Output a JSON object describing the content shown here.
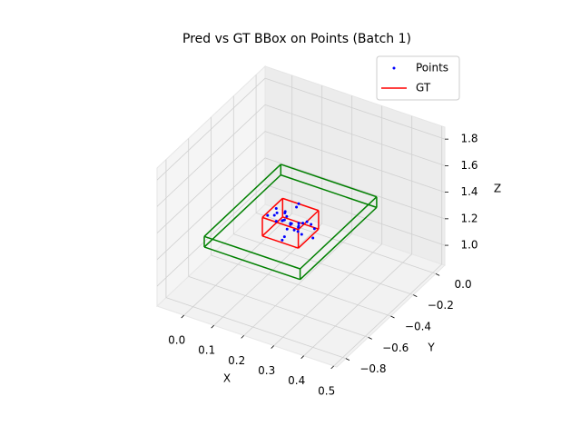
{
  "chart_data": {
    "type": "scatter3d",
    "title": "Pred vs GT BBox on Points (Batch 1)",
    "xlabel": "X",
    "ylabel": "Y",
    "zlabel": "Z",
    "xlim": [
      -0.09,
      0.51
    ],
    "ylim": [
      -0.88,
      0.08
    ],
    "zlim": [
      0.85,
      1.89
    ],
    "xticks": [
      {
        "value": 0.0,
        "label": "0.0"
      },
      0.1,
      0.2,
      0.3,
      0.4,
      0.5
    ],
    "yticks": [
      {
        "value": 0.0,
        "label": "0.0"
      },
      {
        "value": -0.2,
        "label": "−0.2"
      },
      {
        "value": -0.4,
        "label": "−0.4"
      },
      {
        "value": -0.6,
        "label": "−0.6"
      },
      {
        "value": -0.8,
        "label": "−0.8"
      }
    ],
    "zticks": [
      {
        "value": 1.0,
        "label": "1.0"
      },
      1.2,
      1.4,
      1.6,
      1.8
    ],
    "grid": true,
    "legend": "upper right",
    "points": {
      "name": "Points",
      "color": "#0000ff",
      "x": [
        0.16,
        0.12,
        0.2,
        0.14,
        0.18,
        0.1,
        0.22,
        0.15,
        0.17,
        0.13,
        0.19,
        0.11,
        0.21,
        0.16,
        0.14,
        0.18,
        0.24,
        0.08,
        0.15,
        0.17,
        0.12,
        0.2,
        0.16,
        0.19,
        0.13,
        0.25,
        0.09,
        0.16,
        0.18,
        0.14
      ],
      "y": [
        -0.36,
        -0.3,
        -0.4,
        -0.34,
        -0.38,
        -0.32,
        -0.42,
        -0.28,
        -0.44,
        -0.35,
        -0.33,
        -0.37,
        -0.31,
        -0.39,
        -0.36,
        -0.34,
        -0.36,
        -0.35,
        -0.26,
        -0.46,
        -0.38,
        -0.32,
        -0.35,
        -0.37,
        -0.33,
        -0.4,
        -0.3,
        -0.36,
        -0.34,
        -0.38
      ],
      "z": [
        1.24,
        1.26,
        1.25,
        1.27,
        1.23,
        1.25,
        1.26,
        1.3,
        1.22,
        1.24,
        1.25,
        1.28,
        1.24,
        1.23,
        1.26,
        1.25,
        1.27,
        1.24,
        1.31,
        1.21,
        1.25,
        1.26,
        1.24,
        1.25,
        1.28,
        1.24,
        1.26,
        1.25,
        1.23,
        1.27
      ]
    },
    "boxes": [
      {
        "name": "GT",
        "color": "#ff0000",
        "x": [
          0.1,
          0.22
        ],
        "y": [
          -0.45,
          -0.27
        ],
        "z": [
          1.18,
          1.32
        ]
      },
      {
        "color": "#008000",
        "x": [
          0.0,
          0.32
        ],
        "y": [
          -0.7,
          -0.02
        ],
        "z": [
          1.22,
          1.3
        ]
      }
    ]
  }
}
